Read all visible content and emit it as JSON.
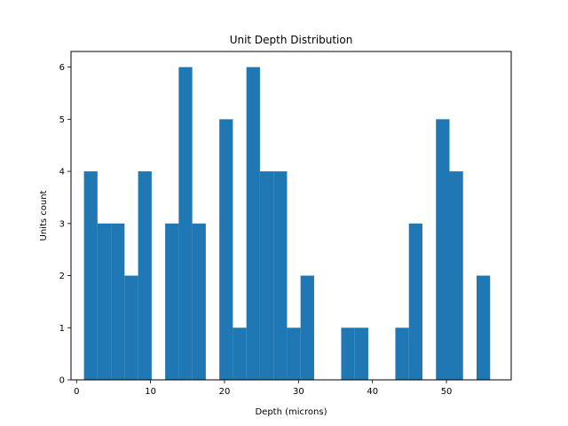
{
  "chart_data": {
    "type": "bar",
    "title": "Unit Depth Distribution",
    "xlabel": "Depth (microns)",
    "ylabel": "Units count",
    "xlim": [
      -0.75,
      58.75
    ],
    "ylim": [
      0,
      6.3
    ],
    "xticks": [
      0,
      10,
      20,
      30,
      40,
      50
    ],
    "yticks": [
      0,
      1,
      2,
      3,
      4,
      5,
      6
    ],
    "bin_width": 1.83,
    "bins": [
      {
        "x0": 1.0,
        "count": 4
      },
      {
        "x0": 2.83,
        "count": 3
      },
      {
        "x0": 4.66,
        "count": 3
      },
      {
        "x0": 6.49,
        "count": 2
      },
      {
        "x0": 8.32,
        "count": 4
      },
      {
        "x0": 10.15,
        "count": 0
      },
      {
        "x0": 11.98,
        "count": 3
      },
      {
        "x0": 13.81,
        "count": 6
      },
      {
        "x0": 15.64,
        "count": 3
      },
      {
        "x0": 17.47,
        "count": 0
      },
      {
        "x0": 19.3,
        "count": 5
      },
      {
        "x0": 21.13,
        "count": 1
      },
      {
        "x0": 22.96,
        "count": 6
      },
      {
        "x0": 24.79,
        "count": 4
      },
      {
        "x0": 26.62,
        "count": 4
      },
      {
        "x0": 28.45,
        "count": 1
      },
      {
        "x0": 30.28,
        "count": 2
      },
      {
        "x0": 32.11,
        "count": 0
      },
      {
        "x0": 33.94,
        "count": 0
      },
      {
        "x0": 35.77,
        "count": 1
      },
      {
        "x0": 37.6,
        "count": 1
      },
      {
        "x0": 39.43,
        "count": 0
      },
      {
        "x0": 41.26,
        "count": 0
      },
      {
        "x0": 43.09,
        "count": 1
      },
      {
        "x0": 44.92,
        "count": 3
      },
      {
        "x0": 46.75,
        "count": 0
      },
      {
        "x0": 48.58,
        "count": 5
      },
      {
        "x0": 50.41,
        "count": 4
      },
      {
        "x0": 52.24,
        "count": 0
      },
      {
        "x0": 54.07,
        "count": 2
      }
    ],
    "bar_color": "#1f77b4",
    "grid": false
  }
}
